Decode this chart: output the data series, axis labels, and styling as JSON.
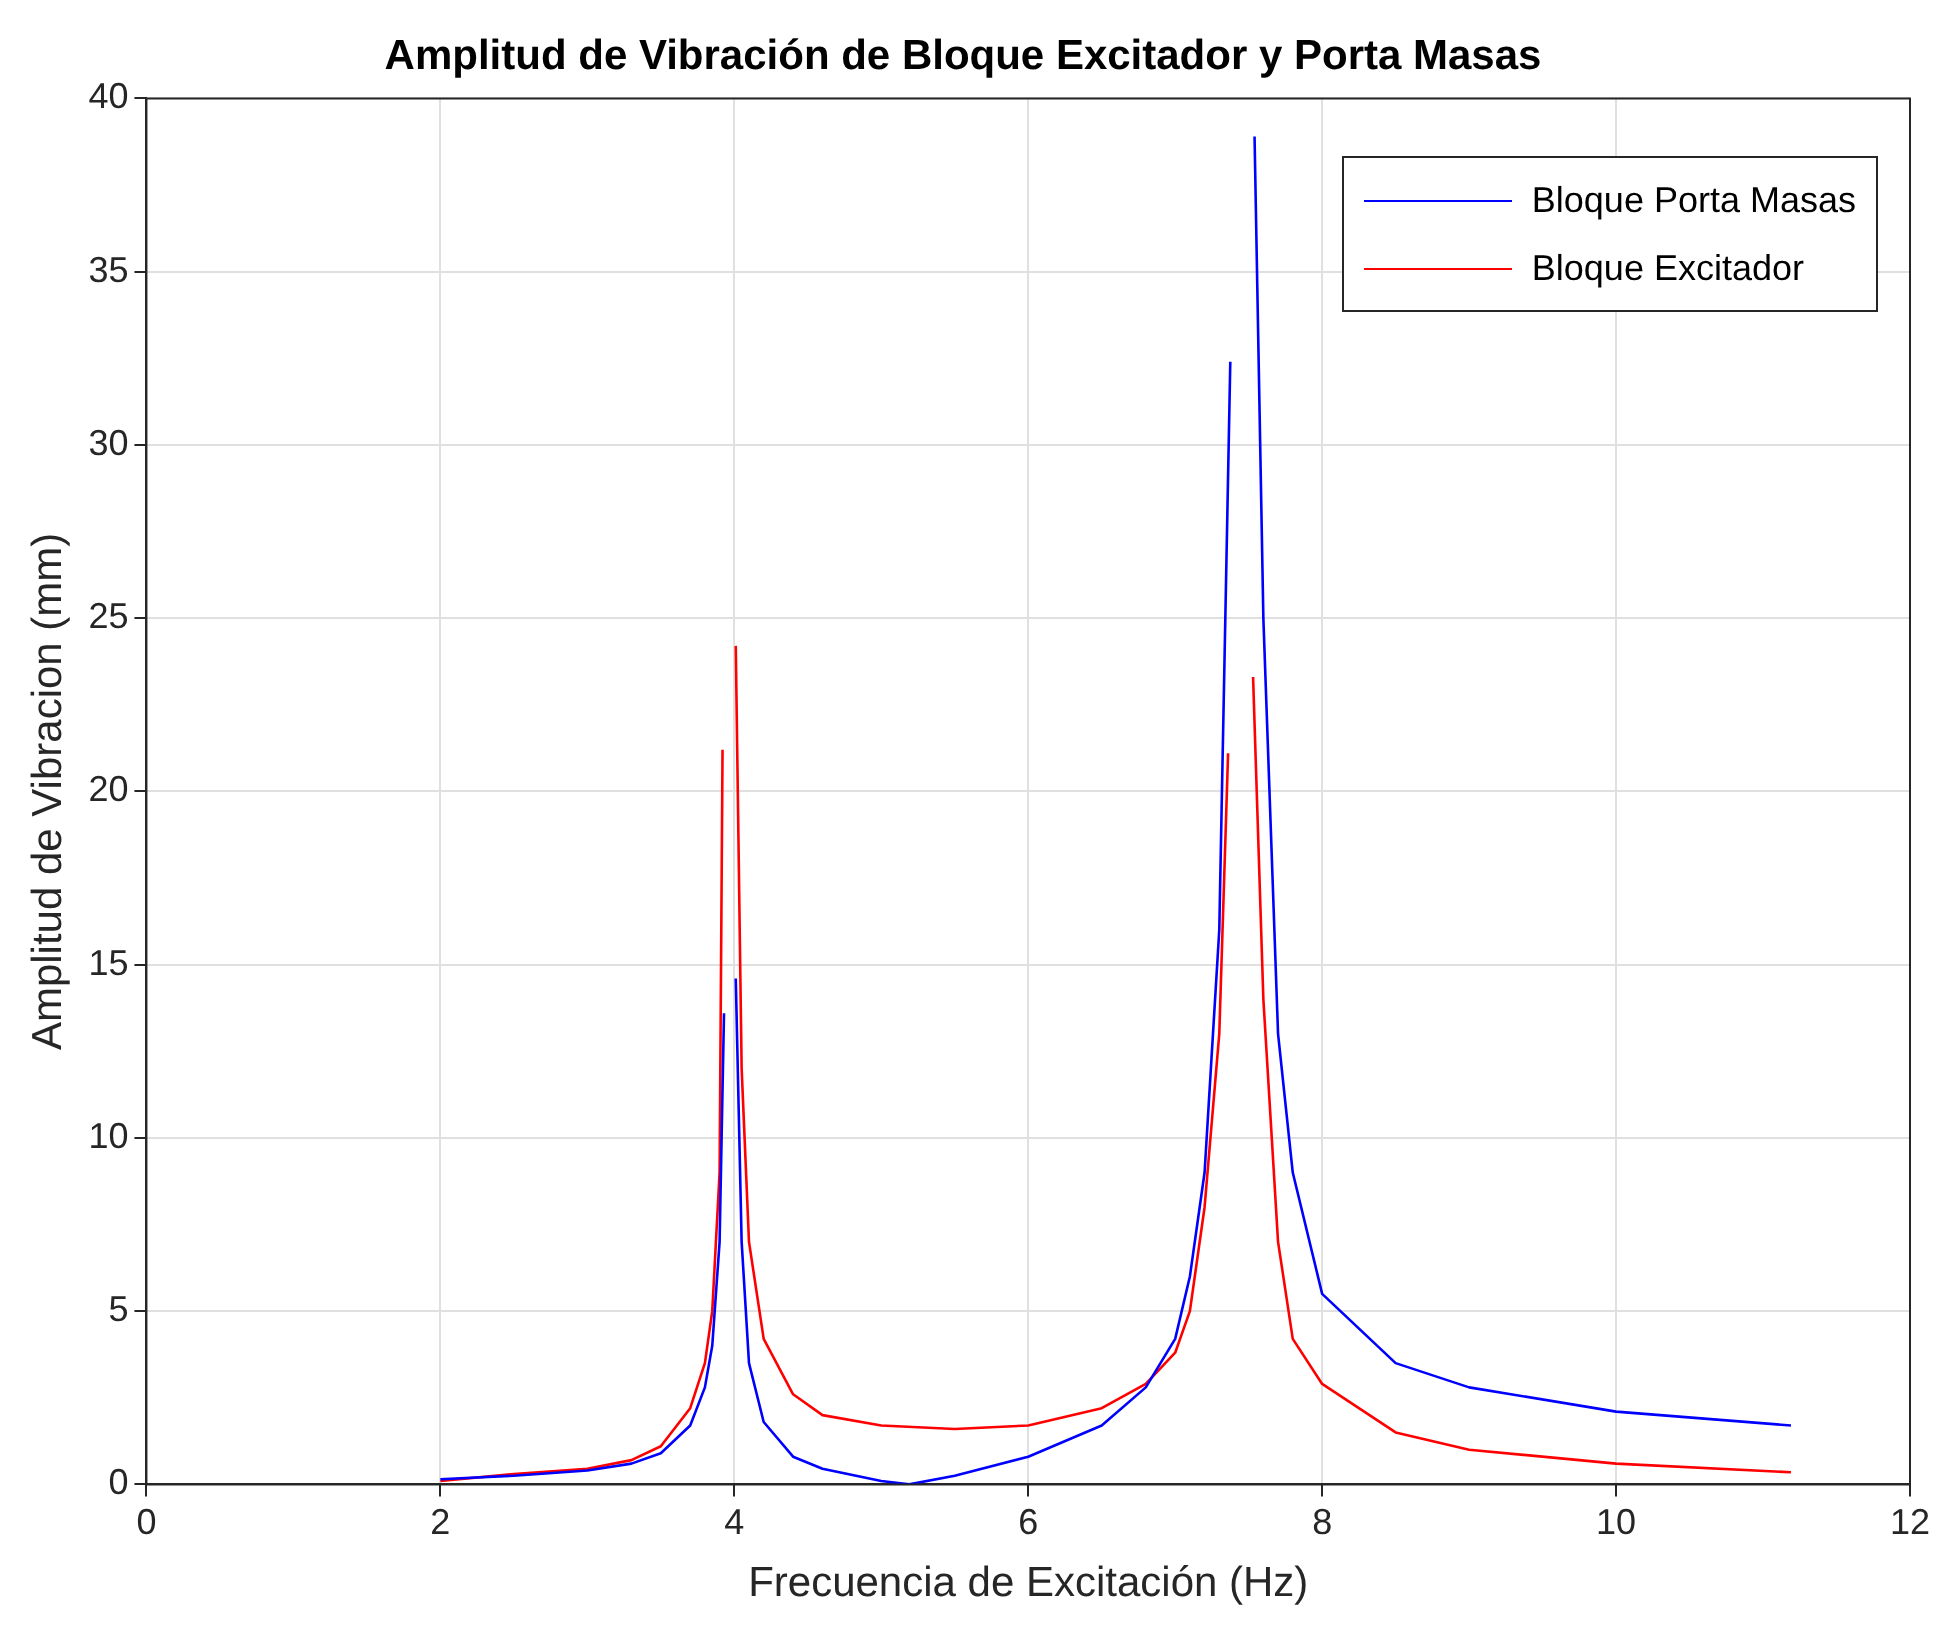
{
  "chart_data": {
    "type": "line",
    "title": "Amplitud de Vibración de Bloque Excitador y Porta Masas",
    "xlabel": "Frecuencia de Excitación (Hz)",
    "ylabel": "Amplitud de Vibracion (mm)",
    "xlim": [
      0,
      12
    ],
    "xticks": [
      0,
      2,
      4,
      6,
      8,
      10,
      12
    ],
    "ylim": [
      0,
      40
    ],
    "yticks": [
      0,
      5,
      10,
      15,
      20,
      25,
      30,
      35,
      40
    ],
    "grid": true,
    "legend": "top right",
    "marker": "none",
    "line_style": "solid",
    "series": [
      {
        "name": "Bloque Porta Masas",
        "color": "#0000ff",
        "x": [
          2,
          2.5,
          3,
          3.3,
          3.5,
          3.7,
          3.8,
          3.85,
          3.9,
          3.93,
          3.97,
          4.01,
          4.05,
          4.1,
          4.2,
          4.4,
          4.6,
          5.0,
          5.19,
          5.5,
          6.0,
          6.5,
          6.8,
          7.0,
          7.1,
          7.2,
          7.3,
          7.375,
          7.45,
          7.54,
          7.6,
          7.7,
          7.8,
          8.0,
          8.5,
          9.0,
          10.0,
          11.19
        ],
        "values": [
          0.15,
          0.25,
          0.4,
          0.6,
          0.9,
          1.7,
          2.8,
          4,
          7,
          13.6,
          null,
          14.6,
          7,
          3.5,
          1.8,
          0.8,
          0.45,
          0.1,
          0,
          0.25,
          0.8,
          1.7,
          2.8,
          4.2,
          6,
          9,
          16,
          32.4,
          null,
          38.9,
          25,
          13,
          9,
          5.5,
          3.5,
          2.8,
          2.1,
          1.7
        ]
      },
      {
        "name": "Bloque Excitador",
        "color": "#ff0000",
        "x": [
          2,
          2.5,
          3,
          3.3,
          3.5,
          3.7,
          3.8,
          3.85,
          3.9,
          3.92,
          3.97,
          4.01,
          4.05,
          4.1,
          4.2,
          4.4,
          4.6,
          5.0,
          5.5,
          6.0,
          6.5,
          6.8,
          7.0,
          7.1,
          7.2,
          7.3,
          7.36,
          7.45,
          7.53,
          7.6,
          7.7,
          7.8,
          8.0,
          8.5,
          9.0,
          10.0,
          11.19
        ],
        "values": [
          0.1,
          0.3,
          0.45,
          0.7,
          1.1,
          2.2,
          3.5,
          5,
          9,
          21.2,
          null,
          24.2,
          12,
          7,
          4.2,
          2.6,
          2.0,
          1.7,
          1.6,
          1.7,
          2.2,
          2.9,
          3.8,
          5,
          8,
          13,
          21.1,
          null,
          23.3,
          14,
          7,
          4.2,
          2.9,
          1.5,
          1.0,
          0.6,
          0.35
        ]
      }
    ]
  }
}
